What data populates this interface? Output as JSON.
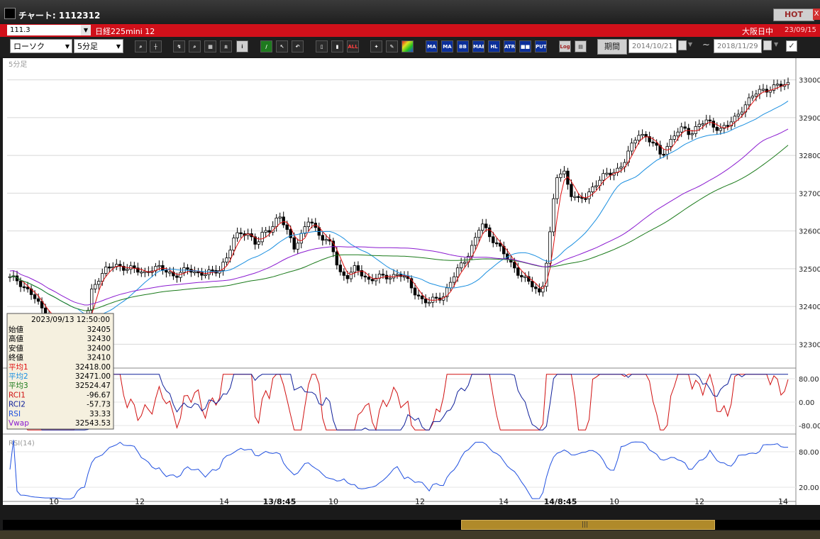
{
  "window": {
    "title": "チャート: 1112312",
    "hot_label": "HOT",
    "close_label": "X"
  },
  "symbol_bar": {
    "code": "111.3",
    "name": "日経225mini 12",
    "market": "大阪日中",
    "date": "23/09/15"
  },
  "toolbar": {
    "chart_type": "ローソク",
    "interval": "5分足",
    "period_label": "期間",
    "date_from": "2014/10/21",
    "date_to": "2018/11/29",
    "tilde": "~",
    "icons": [
      "zoom-icon",
      "crosshair-icon",
      "line-draw-icon",
      "search-icon",
      "grid-icon",
      "toggle-icon",
      "info-icon",
      "pen-icon",
      "cursor-icon",
      "undo-icon",
      "candle-icon",
      "candle-icon-2",
      "all-icon",
      "settings-icon",
      "wrench-icon",
      "palette-icon",
      "ma-icon",
      "ma-icon-2",
      "bb-icon",
      "mae-icon",
      "hl-icon",
      "atr-icon",
      "ichimoku-icon",
      "put-icon",
      "log-icon",
      "export-icon"
    ],
    "indicator_labels": [
      "MA",
      "MA",
      "BB",
      "MAE",
      "HL",
      "ATR",
      "■■",
      "PUT",
      "Log",
      "ALL"
    ]
  },
  "chart": {
    "pane_label": "5分足",
    "rsi_label": "RSI(14)",
    "price_axis": [
      "33000",
      "32900",
      "32800",
      "32700",
      "32600",
      "32500",
      "32400",
      "32300"
    ],
    "osc_axis": [
      "80.00",
      "0.00",
      "-80.00"
    ],
    "rsi_axis": [
      "80.00",
      "20.00"
    ],
    "time_labels": [
      "10",
      "12",
      "14",
      "13/8:45",
      "10",
      "12",
      "14",
      "14/8:45",
      "10",
      "12",
      "14"
    ],
    "colors": {
      "ma1": "#e01010",
      "ma2": "#1a8fe0",
      "ma3": "#1a7a1a",
      "vwap": "#8a1ad0",
      "rci1": "#d01010",
      "rci2": "#10209a",
      "rsi": "#2050e0"
    }
  },
  "chart_data": {
    "type": "candlestick",
    "ylim": [
      32250,
      33020
    ],
    "price_path": [
      32475,
      32470,
      32450,
      32430,
      32400,
      32380,
      32360,
      32330,
      32320,
      32330,
      32340,
      32450,
      32480,
      32500,
      32510,
      32505,
      32500,
      32495,
      32490,
      32500,
      32500,
      32495,
      32480,
      32490,
      32500,
      32490,
      32485,
      32490,
      32500,
      32530,
      32580,
      32600,
      32590,
      32560,
      32600,
      32610,
      32640,
      32600,
      32560,
      32590,
      32630,
      32600,
      32580,
      32560,
      32490,
      32480,
      32500,
      32485,
      32470,
      32480,
      32475,
      32480,
      32490,
      32470,
      32440,
      32420,
      32410,
      32420,
      32430,
      32470,
      32500,
      32530,
      32570,
      32620,
      32590,
      32570,
      32540,
      32510,
      32490,
      32470,
      32450,
      32430,
      32560,
      32740,
      32760,
      32700,
      32680,
      32690,
      32720,
      32740,
      32750,
      32760,
      32780,
      32820,
      32860,
      32850,
      32830,
      32800,
      32830,
      32860,
      32870,
      32860,
      32880,
      32890,
      32880,
      32870,
      32880,
      32900,
      32930,
      32950,
      32970,
      32975,
      32980,
      32985,
      32990
    ],
    "info_panel": {
      "datetime": "2023/09/13 12:50:00",
      "rows": [
        {
          "label": "始値",
          "value": "32405",
          "color": "#000000"
        },
        {
          "label": "高値",
          "value": "32430",
          "color": "#000000"
        },
        {
          "label": "安値",
          "value": "32400",
          "color": "#000000"
        },
        {
          "label": "終値",
          "value": "32410",
          "color": "#000000"
        },
        {
          "label": "平均1",
          "value": "32418.00",
          "color": "#e01010"
        },
        {
          "label": "平均2",
          "value": "32471.00",
          "color": "#1a8fe0"
        },
        {
          "label": "平均3",
          "value": "32524.47",
          "color": "#1a7a1a"
        },
        {
          "label": "RCI1",
          "value": "-96.67",
          "color": "#d01010"
        },
        {
          "label": "RCI2",
          "value": "-57.73",
          "color": "#10209a"
        },
        {
          "label": "RSI",
          "value": "33.33",
          "color": "#2050e0"
        },
        {
          "label": "Vwap",
          "value": "32543.53",
          "color": "#8a1ad0"
        }
      ]
    }
  }
}
